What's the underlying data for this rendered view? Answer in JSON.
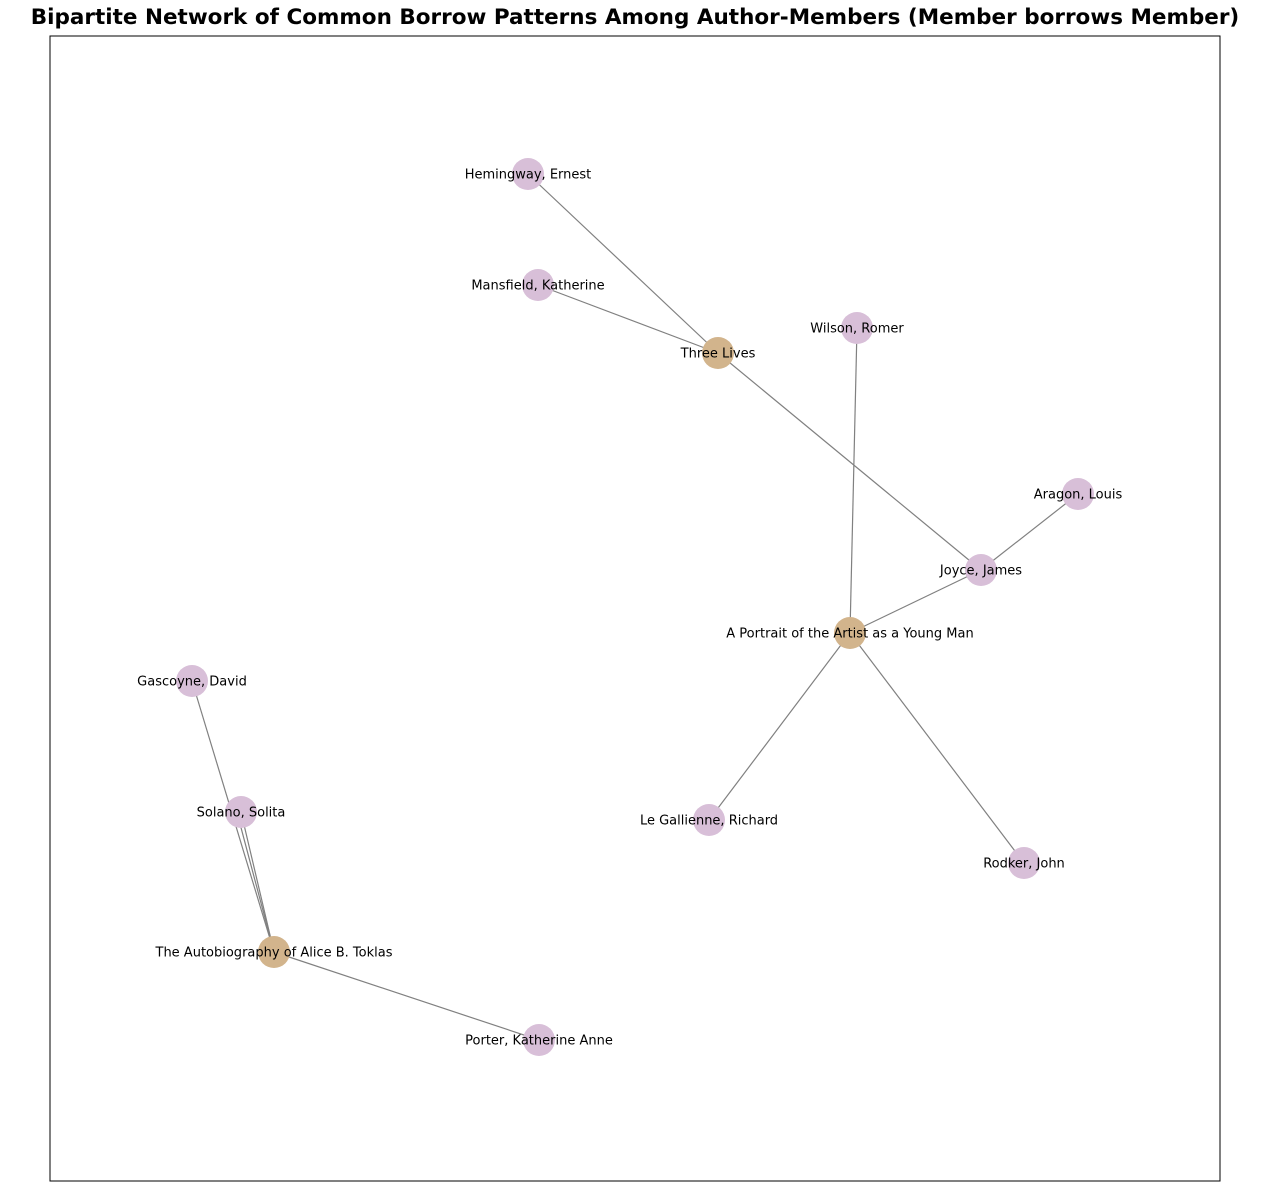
{
  "title": "Bipartite Network of Common Borrow Patterns Among Author-Members (Member borrows Member)",
  "colors": {
    "book_node": "#d2b48c",
    "member_node": "#d8bfd8",
    "edge": "#808080",
    "frame": "#000000"
  },
  "nodes": [
    {
      "id": "hemingway",
      "label": "Hemingway, Ernest",
      "kind": "member"
    },
    {
      "id": "mansfield",
      "label": "Mansfield, Katherine",
      "kind": "member"
    },
    {
      "id": "three_lives",
      "label": "Three Lives",
      "kind": "book"
    },
    {
      "id": "wilson",
      "label": "Wilson, Romer",
      "kind": "member"
    },
    {
      "id": "aragon",
      "label": "Aragon, Louis",
      "kind": "member"
    },
    {
      "id": "joyce",
      "label": "Joyce, James",
      "kind": "member"
    },
    {
      "id": "portrait",
      "label": "A Portrait of the Artist as a Young Man",
      "kind": "book"
    },
    {
      "id": "gascoyne",
      "label": "Gascoyne, David",
      "kind": "member"
    },
    {
      "id": "solano",
      "label": "Solano, Solita",
      "kind": "member"
    },
    {
      "id": "le_gallienne",
      "label": "Le Gallienne, Richard",
      "kind": "member"
    },
    {
      "id": "rodker",
      "label": "Rodker, John",
      "kind": "member"
    },
    {
      "id": "autobiography",
      "label": "The Autobiography of Alice B. Toklas",
      "kind": "book"
    },
    {
      "id": "porter",
      "label": "Porter, Katherine Anne",
      "kind": "member"
    }
  ],
  "edges": [
    [
      "hemingway",
      "three_lives"
    ],
    [
      "mansfield",
      "three_lives"
    ],
    [
      "three_lives",
      "joyce"
    ],
    [
      "wilson",
      "portrait"
    ],
    [
      "aragon",
      "joyce"
    ],
    [
      "joyce",
      "portrait"
    ],
    [
      "portrait",
      "le_gallienne"
    ],
    [
      "portrait",
      "rodker"
    ],
    [
      "gascoyne",
      "autobiography"
    ],
    [
      "solano",
      "autobiography"
    ],
    [
      "solano",
      "autobiography"
    ],
    [
      "autobiography",
      "porter"
    ]
  ]
}
